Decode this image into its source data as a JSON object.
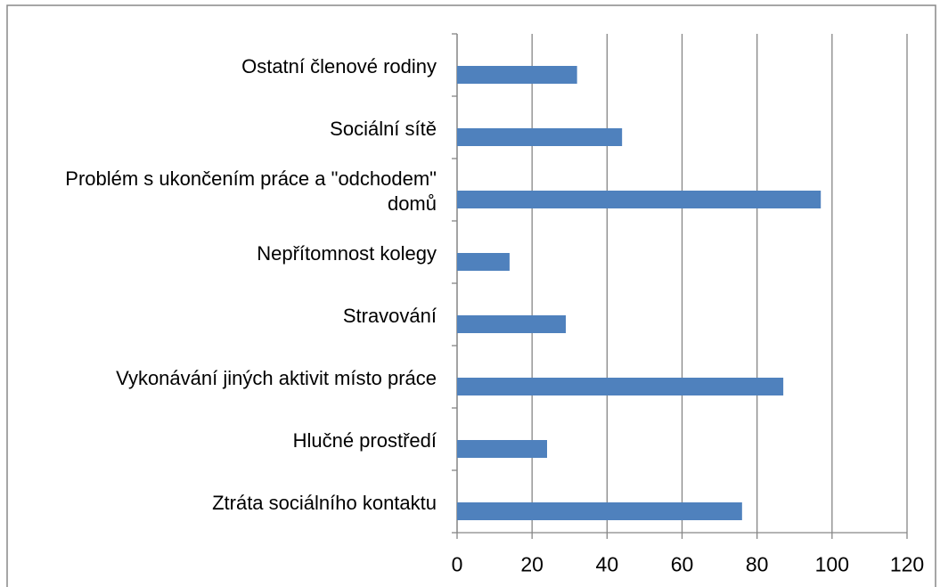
{
  "chart_data": {
    "type": "bar",
    "orientation": "horizontal",
    "categories": [
      "Ostatní členové rodiny",
      "Sociální sítě",
      "Problém s ukončením práce a \"odchodem\" domů",
      "Nepřítomnost kolegy",
      "Stravování",
      "Vykonávání jiných aktivit místo práce",
      "Hlučné prostředí",
      "Ztráta sociálního kontaktu"
    ],
    "values": [
      32,
      44,
      97,
      14,
      29,
      87,
      24,
      76
    ],
    "color": "#4f81bd",
    "xlim": [
      0,
      120
    ],
    "xticks": [
      0,
      20,
      40,
      60,
      80,
      100,
      120
    ],
    "grid": true
  }
}
